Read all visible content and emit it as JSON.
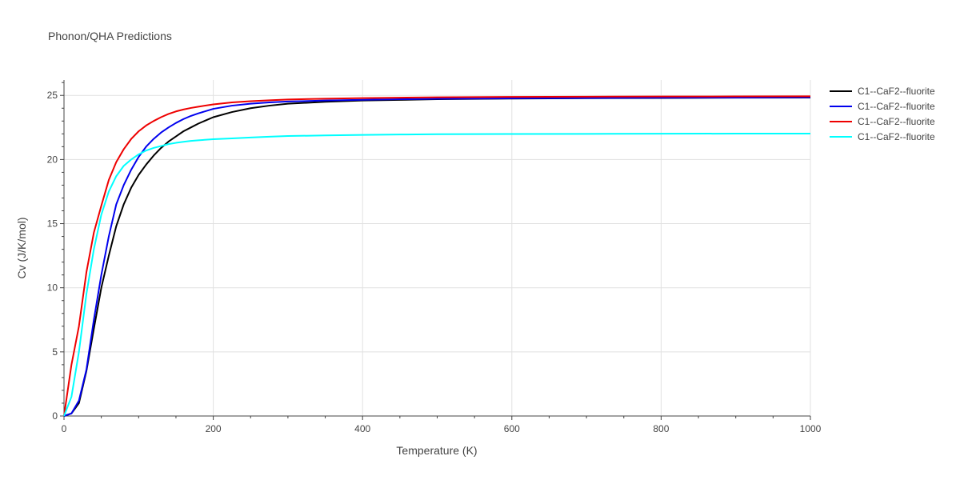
{
  "title": "Phonon/QHA Predictions",
  "chart_data": {
    "type": "line",
    "title": "Phonon/QHA Predictions",
    "xlabel": "Temperature (K)",
    "ylabel": "Cv (J/K/mol)",
    "xlim": [
      0,
      1000
    ],
    "ylim": [
      0,
      26.2
    ],
    "x_ticks": [
      0,
      200,
      400,
      600,
      800,
      1000
    ],
    "x_tick_labels": [
      "0",
      "200",
      "400",
      "600",
      "800",
      "1000"
    ],
    "y_ticks": [
      0,
      5,
      10,
      15,
      20,
      25
    ],
    "y_tick_labels": [
      "0",
      "5",
      "10",
      "15",
      "20",
      "25"
    ],
    "grid": true,
    "legend_position": "top-right",
    "series": [
      {
        "name": "C1--CaF2--fluorite",
        "color": "#000000",
        "x": [
          0,
          10,
          20,
          30,
          40,
          50,
          60,
          70,
          80,
          90,
          100,
          110,
          120,
          130,
          140,
          150,
          160,
          170,
          180,
          200,
          225,
          250,
          275,
          300,
          350,
          400,
          450,
          500,
          600,
          700,
          800,
          900,
          1000
        ],
        "y": [
          0,
          0.2,
          1.0,
          3.5,
          6.8,
          10.0,
          12.5,
          14.8,
          16.5,
          17.8,
          18.8,
          19.6,
          20.3,
          20.9,
          21.4,
          21.8,
          22.2,
          22.5,
          22.8,
          23.3,
          23.7,
          24.0,
          24.2,
          24.35,
          24.5,
          24.6,
          24.65,
          24.7,
          24.75,
          24.78,
          24.8,
          24.82,
          24.83
        ]
      },
      {
        "name": "C1--CaF2--fluorite",
        "color": "#0000ee",
        "x": [
          0,
          10,
          20,
          30,
          40,
          50,
          60,
          70,
          80,
          90,
          100,
          110,
          120,
          130,
          140,
          150,
          160,
          170,
          180,
          200,
          225,
          250,
          275,
          300,
          350,
          400,
          450,
          500,
          600,
          700,
          800,
          900,
          1000
        ],
        "y": [
          0,
          0.2,
          1.2,
          3.6,
          7.5,
          11.0,
          14.0,
          16.5,
          18.0,
          19.2,
          20.2,
          21.0,
          21.6,
          22.1,
          22.5,
          22.85,
          23.15,
          23.4,
          23.6,
          23.95,
          24.2,
          24.35,
          24.45,
          24.52,
          24.6,
          24.66,
          24.7,
          24.73,
          24.77,
          24.8,
          24.82,
          24.83,
          24.85
        ]
      },
      {
        "name": "C1--CaF2--fluorite",
        "color": "#ee0000",
        "x": [
          0,
          10,
          20,
          30,
          40,
          50,
          60,
          70,
          80,
          90,
          100,
          110,
          120,
          130,
          140,
          150,
          160,
          170,
          180,
          200,
          225,
          250,
          275,
          300,
          350,
          400,
          450,
          500,
          600,
          700,
          800,
          900,
          1000
        ],
        "y": [
          0,
          4.0,
          7.0,
          11.2,
          14.3,
          16.4,
          18.4,
          19.8,
          20.8,
          21.6,
          22.2,
          22.65,
          23.0,
          23.3,
          23.55,
          23.75,
          23.9,
          24.02,
          24.12,
          24.3,
          24.45,
          24.55,
          24.62,
          24.68,
          24.74,
          24.79,
          24.82,
          24.85,
          24.88,
          24.9,
          24.91,
          24.92,
          24.93
        ]
      },
      {
        "name": "C1--CaF2--fluorite",
        "color": "#00ffff",
        "x": [
          0,
          10,
          20,
          30,
          40,
          50,
          60,
          70,
          80,
          90,
          100,
          110,
          120,
          130,
          140,
          150,
          160,
          170,
          180,
          200,
          225,
          250,
          275,
          300,
          350,
          400,
          450,
          500,
          600,
          700,
          800,
          900,
          1000
        ],
        "y": [
          0,
          1.5,
          5.0,
          9.5,
          13.0,
          15.7,
          17.5,
          18.7,
          19.5,
          20.0,
          20.4,
          20.7,
          20.9,
          21.05,
          21.2,
          21.3,
          21.38,
          21.45,
          21.5,
          21.58,
          21.65,
          21.72,
          21.78,
          21.83,
          21.88,
          21.92,
          21.95,
          21.97,
          21.99,
          22.0,
          22.01,
          22.02,
          22.02
        ]
      }
    ]
  }
}
